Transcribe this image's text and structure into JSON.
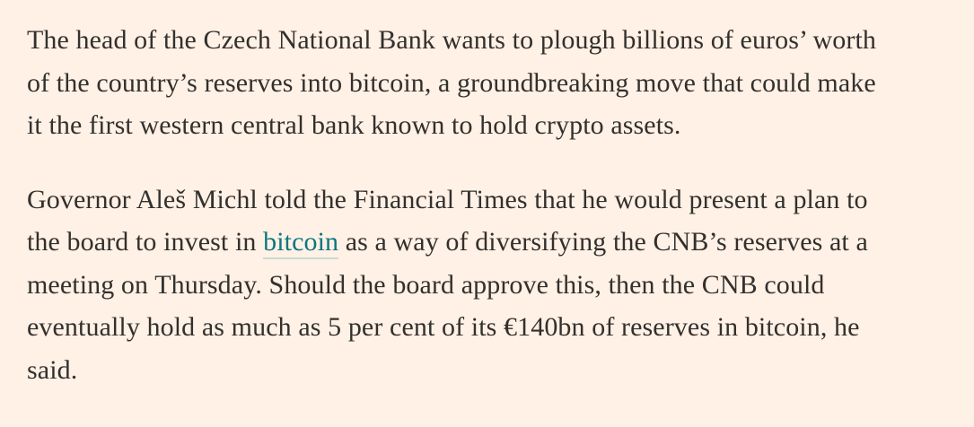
{
  "theme": {
    "background": "#FFF1E5",
    "text_color": "#33302E",
    "link_color": "#0D7680",
    "link_underline_color": "#C9DAD0"
  },
  "article": {
    "paragraph1": {
      "line1": "The head of the Czech National Bank wants to plough billions of euros’ worth",
      "line2": "of the country’s reserves into bitcoin, a groundbreaking move that could make",
      "line3": "it the first western central bank known to hold crypto assets."
    },
    "paragraph2": {
      "line1": "Governor Aleš Michl told the Financial Times that he would present a plan to",
      "line2_pre": "the board to invest in ",
      "line2_link": "bitcoin",
      "line2_post": " as a way of diversifying the CNB’s reserves at a",
      "line3": "meeting on Thursday. Should the board approve this, then the CNB could",
      "line4": "eventually hold as much as 5 per cent of its €140bn of reserves in bitcoin, he",
      "line5": "said."
    }
  }
}
